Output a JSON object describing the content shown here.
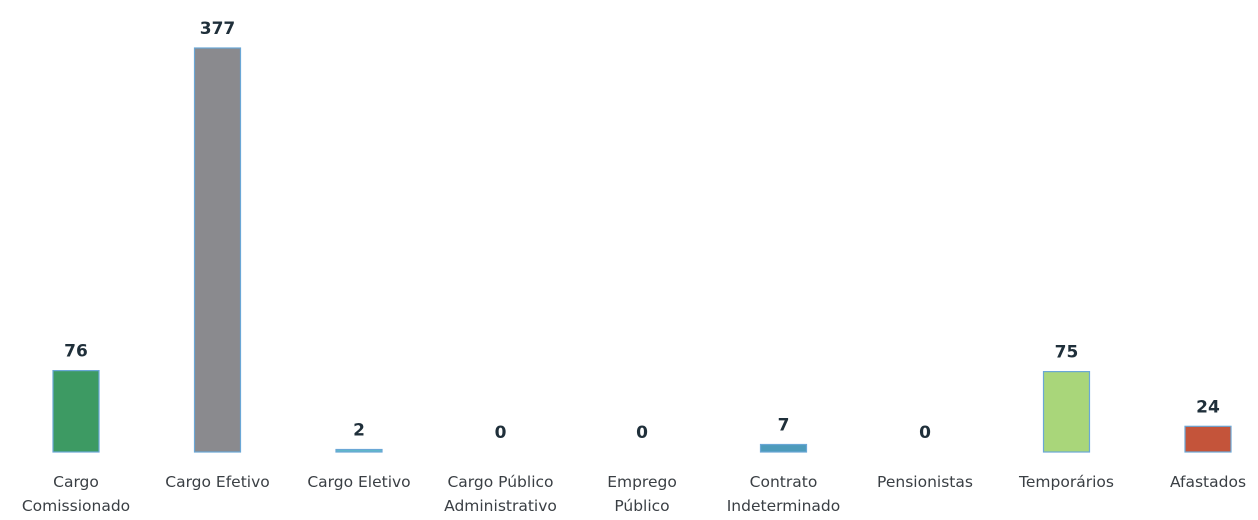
{
  "chart_data": {
    "type": "bar",
    "categories": [
      [
        "Cargo",
        "Comissionado"
      ],
      [
        "Cargo Efetivo"
      ],
      [
        "Cargo Eletivo"
      ],
      [
        "Cargo Público",
        "Administrativo"
      ],
      [
        "Emprego",
        "Público"
      ],
      [
        "Contrato",
        "Indeterminado"
      ],
      [
        "Pensionistas"
      ],
      [
        "Temporários"
      ],
      [
        "Afastados"
      ]
    ],
    "values": [
      76,
      377,
      2,
      0,
      0,
      7,
      0,
      75,
      24
    ],
    "colors": [
      "#3d9a63",
      "#8a8a8e",
      "#5fb9c9",
      "#5fb9c9",
      "#5fb9c9",
      "#4d9bbb",
      "#5fb9c9",
      "#a9d67a",
      "#c4543a"
    ],
    "ylim": [
      0,
      377
    ],
    "grid": false,
    "legend": "none",
    "title": "",
    "xlabel": "",
    "ylabel": ""
  }
}
